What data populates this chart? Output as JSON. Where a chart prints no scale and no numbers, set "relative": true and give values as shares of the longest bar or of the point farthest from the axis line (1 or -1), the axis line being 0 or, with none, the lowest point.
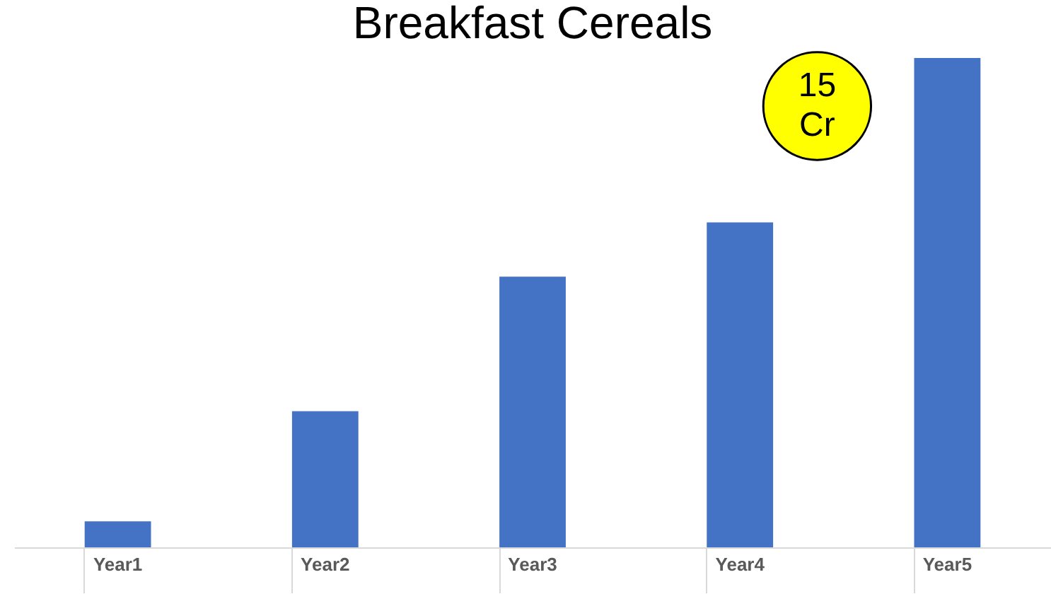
{
  "chart_data": {
    "type": "bar",
    "title": "Breakfast Cereals",
    "relative": true,
    "categories": [
      "Year1",
      "Year2",
      "Year3",
      "Year4",
      "Year5"
    ],
    "values": [
      0.053,
      0.278,
      0.553,
      0.664,
      1.0
    ],
    "color": "#4472c4",
    "annotations": [
      "15 Cr"
    ],
    "grid": false
  }
}
